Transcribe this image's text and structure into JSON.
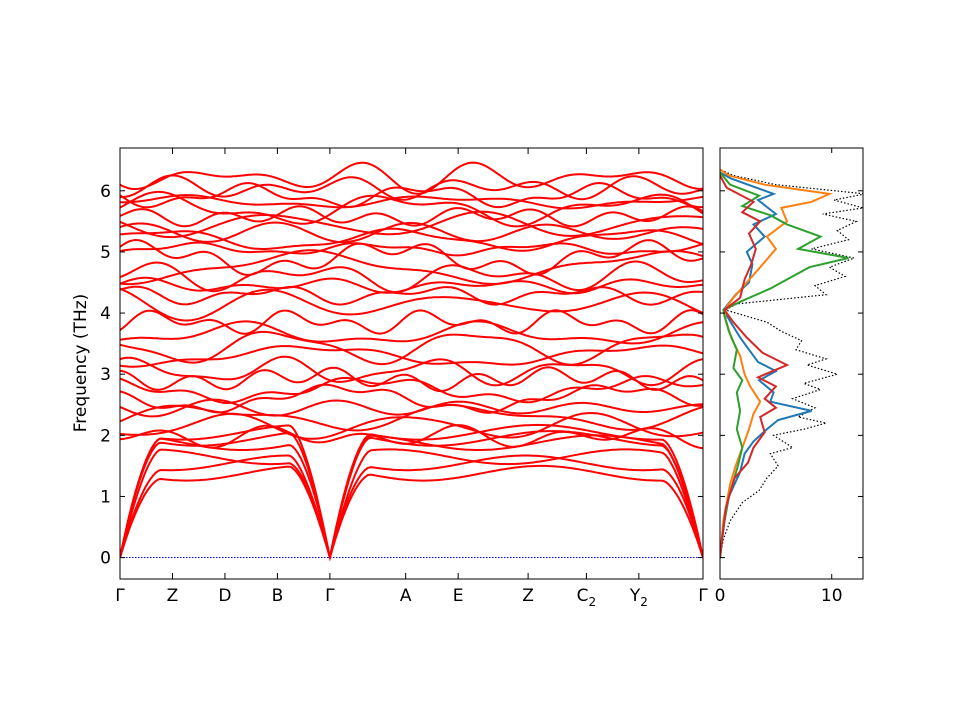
{
  "chart_data": [
    {
      "type": "line",
      "title": "",
      "xlabel": "",
      "ylabel": "Frequency (THz)",
      "ylim": [
        -0.35,
        6.7
      ],
      "yticks": [
        0,
        1,
        2,
        3,
        4,
        5,
        6
      ],
      "path_labels": [
        {
          "main": "Γ",
          "sub": ""
        },
        {
          "main": "Z",
          "sub": ""
        },
        {
          "main": "D",
          "sub": ""
        },
        {
          "main": "B",
          "sub": ""
        },
        {
          "main": "Γ",
          "sub": ""
        },
        {
          "main": "A",
          "sub": ""
        },
        {
          "main": "E",
          "sub": ""
        },
        {
          "main": "Z",
          "sub": ""
        },
        {
          "main": "C",
          "sub": "2"
        },
        {
          "main": "Y",
          "sub": "2"
        },
        {
          "main": "Γ",
          "sub": ""
        }
      ],
      "path_positions": [
        0,
        0.45,
        0.9,
        1.35,
        1.8,
        2.45,
        2.9,
        3.5,
        4.0,
        4.45,
        5.0
      ],
      "band_color": "#ff0000",
      "zero_line_color": "#0000ff",
      "acoustic_end_values": [
        1.38,
        1.55,
        1.65,
        1.88,
        1.95,
        2.05
      ],
      "optical_levels": [
        1.98,
        2.15,
        2.3,
        2.45,
        2.6,
        2.75,
        2.92,
        3.05,
        3.3,
        3.45,
        3.65,
        3.85,
        4.15,
        4.3,
        4.45,
        4.6,
        4.75,
        4.9,
        5.05,
        5.2,
        5.32,
        5.45,
        5.58,
        5.7,
        5.82,
        5.92,
        6.05,
        6.22
      ]
    },
    {
      "type": "line",
      "title": "",
      "xlabel": "",
      "ylabel": "",
      "xlim": [
        0,
        12.8
      ],
      "xticks": [
        0,
        10
      ],
      "ylim": [
        -0.35,
        6.7
      ],
      "series": [
        {
          "color": "#000000",
          "style": "dotted",
          "values": [
            [
              0,
              0
            ],
            [
              0.3,
              0.3
            ],
            [
              0.9,
              0.6
            ],
            [
              2.0,
              0.9
            ],
            [
              3.5,
              1.1
            ],
            [
              4.2,
              1.3
            ],
            [
              5.2,
              1.5
            ],
            [
              4.5,
              1.7
            ],
            [
              6.5,
              1.8
            ],
            [
              4.8,
              2.0
            ],
            [
              7.5,
              2.1
            ],
            [
              9.5,
              2.2
            ],
            [
              7.0,
              2.3
            ],
            [
              8.5,
              2.45
            ],
            [
              6.5,
              2.6
            ],
            [
              9.0,
              2.75
            ],
            [
              7.5,
              2.85
            ],
            [
              10.5,
              3.0
            ],
            [
              7.8,
              3.15
            ],
            [
              9.5,
              3.25
            ],
            [
              6.8,
              3.4
            ],
            [
              7.3,
              3.55
            ],
            [
              5.5,
              3.7
            ],
            [
              4.2,
              3.85
            ],
            [
              0.5,
              4.05
            ],
            [
              1.5,
              4.15
            ],
            [
              9.5,
              4.3
            ],
            [
              8.5,
              4.45
            ],
            [
              11.2,
              4.6
            ],
            [
              9.8,
              4.75
            ],
            [
              12.0,
              4.9
            ],
            [
              8.2,
              5.05
            ],
            [
              11.5,
              5.2
            ],
            [
              10.5,
              5.35
            ],
            [
              12.2,
              5.5
            ],
            [
              9.2,
              5.62
            ],
            [
              12.8,
              5.72
            ],
            [
              10.2,
              5.85
            ],
            [
              13.0,
              5.95
            ],
            [
              5.0,
              6.1
            ],
            [
              1.2,
              6.25
            ],
            [
              0,
              6.35
            ]
          ]
        },
        {
          "color": "#1f77b4",
          "style": "solid",
          "values": [
            [
              0,
              0
            ],
            [
              0.4,
              0.6
            ],
            [
              0.8,
              1.0
            ],
            [
              1.8,
              1.4
            ],
            [
              2.2,
              1.7
            ],
            [
              3.0,
              1.9
            ],
            [
              4.2,
              2.1
            ],
            [
              5.2,
              2.25
            ],
            [
              8.2,
              2.4
            ],
            [
              4.5,
              2.55
            ],
            [
              4.8,
              2.7
            ],
            [
              3.5,
              2.9
            ],
            [
              5.0,
              3.05
            ],
            [
              3.4,
              3.2
            ],
            [
              2.6,
              3.4
            ],
            [
              1.8,
              3.6
            ],
            [
              0.8,
              3.9
            ],
            [
              0.3,
              4.05
            ],
            [
              1.4,
              4.3
            ],
            [
              2.6,
              4.5
            ],
            [
              2.9,
              4.8
            ],
            [
              2.4,
              5.0
            ],
            [
              4.0,
              5.25
            ],
            [
              3.0,
              5.45
            ],
            [
              5.0,
              5.62
            ],
            [
              3.4,
              5.85
            ],
            [
              4.8,
              5.95
            ],
            [
              1.0,
              6.2
            ],
            [
              0,
              6.3
            ]
          ]
        },
        {
          "color": "#ff7f0e",
          "style": "solid",
          "values": [
            [
              0,
              0
            ],
            [
              0.3,
              0.6
            ],
            [
              0.9,
              1.2
            ],
            [
              1.4,
              1.5
            ],
            [
              2.0,
              1.8
            ],
            [
              2.6,
              2.1
            ],
            [
              3.0,
              2.35
            ],
            [
              3.6,
              2.55
            ],
            [
              2.7,
              2.8
            ],
            [
              2.2,
              3.0
            ],
            [
              1.8,
              3.3
            ],
            [
              1.0,
              3.6
            ],
            [
              0.5,
              3.9
            ],
            [
              0.4,
              4.05
            ],
            [
              1.2,
              4.25
            ],
            [
              2.4,
              4.5
            ],
            [
              3.6,
              4.75
            ],
            [
              5.0,
              5.05
            ],
            [
              4.2,
              5.25
            ],
            [
              6.0,
              5.5
            ],
            [
              5.5,
              5.72
            ],
            [
              8.2,
              5.82
            ],
            [
              9.8,
              5.95
            ],
            [
              4.0,
              6.1
            ],
            [
              0.8,
              6.25
            ],
            [
              0,
              6.35
            ]
          ]
        },
        {
          "color": "#2ca02c",
          "style": "solid",
          "values": [
            [
              0,
              0
            ],
            [
              0.3,
              0.5
            ],
            [
              0.8,
              1.0
            ],
            [
              1.6,
              1.5
            ],
            [
              2.0,
              1.8
            ],
            [
              1.5,
              2.1
            ],
            [
              1.8,
              2.4
            ],
            [
              1.5,
              2.7
            ],
            [
              2.0,
              2.9
            ],
            [
              1.2,
              3.1
            ],
            [
              1.5,
              3.4
            ],
            [
              0.8,
              3.7
            ],
            [
              0.4,
              3.95
            ],
            [
              0.3,
              4.05
            ],
            [
              2.0,
              4.2
            ],
            [
              4.5,
              4.4
            ],
            [
              6.5,
              4.6
            ],
            [
              8.0,
              4.75
            ],
            [
              11.5,
              4.9
            ],
            [
              7.0,
              5.05
            ],
            [
              9.0,
              5.25
            ],
            [
              6.0,
              5.45
            ],
            [
              4.5,
              5.6
            ],
            [
              2.0,
              5.75
            ],
            [
              3.5,
              5.92
            ],
            [
              0.9,
              6.1
            ],
            [
              0,
              6.3
            ]
          ]
        },
        {
          "color": "#d62728",
          "style": "solid",
          "values": [
            [
              0,
              0
            ],
            [
              0.5,
              0.8
            ],
            [
              1.3,
              1.3
            ],
            [
              2.5,
              1.55
            ],
            [
              3.0,
              1.8
            ],
            [
              4.0,
              2.05
            ],
            [
              3.6,
              2.3
            ],
            [
              5.0,
              2.45
            ],
            [
              4.0,
              2.6
            ],
            [
              5.0,
              2.8
            ],
            [
              3.4,
              2.95
            ],
            [
              6.0,
              3.15
            ],
            [
              3.8,
              3.35
            ],
            [
              2.4,
              3.6
            ],
            [
              1.2,
              3.85
            ],
            [
              0.4,
              4.05
            ],
            [
              1.8,
              4.25
            ],
            [
              2.2,
              4.55
            ],
            [
              2.8,
              4.8
            ],
            [
              3.2,
              5.05
            ],
            [
              2.6,
              5.3
            ],
            [
              3.6,
              5.5
            ],
            [
              2.0,
              5.65
            ],
            [
              3.0,
              5.82
            ],
            [
              0.6,
              6.05
            ],
            [
              0,
              6.25
            ]
          ]
        }
      ]
    }
  ]
}
